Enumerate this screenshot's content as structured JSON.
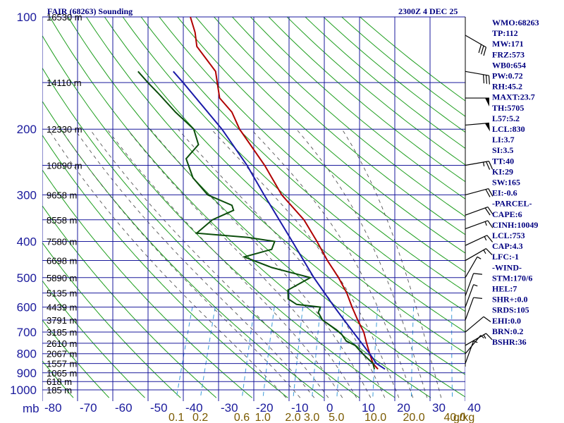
{
  "header": {
    "title": "FAIR (68263) Sounding",
    "time": "2300Z  4 DEC 25"
  },
  "indices": [
    "WMO:68263",
    "TP:112",
    "MW:171",
    "FRZ:573",
    "WB0:654",
    "PW:0.72",
    "RH:45.2",
    "MAXT:23.7",
    "TH:5705",
    "L57:5.2",
    "LCL:830",
    "LI:3.7",
    "SI:3.5",
    "TT:40",
    "KI:29",
    "SW:165",
    "EI:-0.6",
    "-PARCEL-",
    "CAPE:6",
    "CINH:10049",
    "LCL:753",
    "CAP:4.3",
    "LFC:-1",
    "-WIND-",
    "STM:170/6",
    "HEL:7",
    "SHR+:0.0",
    "SRDS:105",
    "EHI:0.0",
    "BRN:0.2",
    "BSHR:36"
  ],
  "colors": {
    "grid": "#1a1a9c",
    "dry_adiabat": "#1e9e1e",
    "moist_adiabat": "#555555",
    "mixing_ratio": "#3a9ad9",
    "temperature": "#b00000",
    "dewpoint": "#0b4d0b",
    "parcel": "#1a1aa8",
    "wind": "#000000"
  },
  "chart_data": {
    "type": "skew-t",
    "title": "FAIR (68263) Sounding",
    "xlabel": "",
    "ylabel": "",
    "pressure_axis_unit": "mb",
    "pressure_ticks": [
      100,
      200,
      300,
      400,
      500,
      600,
      700,
      800,
      900,
      1000
    ],
    "pressure_minor": [
      150,
      250,
      350,
      450,
      550,
      650,
      750,
      850,
      950
    ],
    "temperature_ticks": [
      -80,
      -70,
      -60,
      -50,
      -40,
      -30,
      -20,
      -10,
      0,
      10,
      20,
      30,
      40
    ],
    "temperature_labels": [
      "-80",
      "-70",
      "-60",
      "-50",
      "-40",
      "-30",
      "-20",
      "-10",
      "0",
      "10",
      "20",
      "30",
      "40"
    ],
    "mixing_ratio_unit": "g/kg",
    "mixing_ratio_labels": [
      {
        "value": 0.1,
        "label": "0.1"
      },
      {
        "value": 0.2,
        "label": "0.2"
      },
      {
        "value": 0.6,
        "label": "0.6"
      },
      {
        "value": 1.0,
        "label": "1.0"
      },
      {
        "value": 2.0,
        "label": "2.0"
      },
      {
        "value": 3.0,
        "label": "3.0"
      },
      {
        "value": 5.0,
        "label": "5.0"
      },
      {
        "value": 10.0,
        "label": "10.0"
      },
      {
        "value": 20.0,
        "label": "20.0"
      },
      {
        "value": 40.0,
        "label": "40.0"
      }
    ],
    "height_labels": [
      {
        "p": 100,
        "label": "16530 m"
      },
      {
        "p": 150,
        "label": "14110 m"
      },
      {
        "p": 200,
        "label": "12330 m"
      },
      {
        "p": 250,
        "label": "10890 m"
      },
      {
        "p": 300,
        "label": "9658 m"
      },
      {
        "p": 350,
        "label": "8558 m"
      },
      {
        "p": 400,
        "label": "7580 m"
      },
      {
        "p": 450,
        "label": "6698 m"
      },
      {
        "p": 500,
        "label": "5890 m"
      },
      {
        "p": 550,
        "label": "5135 m"
      },
      {
        "p": 600,
        "label": "4439 m"
      },
      {
        "p": 650,
        "label": "3791 m"
      },
      {
        "p": 700,
        "label": "3185 m"
      },
      {
        "p": 750,
        "label": "2610 m"
      },
      {
        "p": 800,
        "label": "2067 m"
      },
      {
        "p": 850,
        "label": "1557 m"
      },
      {
        "p": 900,
        "label": "1065 m"
      },
      {
        "p": 950,
        "label": "618 m"
      },
      {
        "p": 1000,
        "label": "185 m"
      }
    ],
    "series": [
      {
        "kind": "temperature",
        "points": [
          [
            880,
            13
          ],
          [
            850,
            11
          ],
          [
            800,
            9
          ],
          [
            750,
            7
          ],
          [
            700,
            5
          ],
          [
            650,
            2
          ],
          [
            600,
            -1
          ],
          [
            550,
            -4
          ],
          [
            500,
            -8
          ],
          [
            450,
            -13
          ],
          [
            400,
            -18
          ],
          [
            350,
            -24
          ],
          [
            300,
            -33
          ],
          [
            250,
            -41
          ],
          [
            200,
            -52
          ],
          [
            180,
            -56
          ],
          [
            165,
            -61
          ],
          [
            140,
            -65
          ],
          [
            120,
            -73
          ],
          [
            110,
            -75
          ],
          [
            100,
            -78
          ]
        ]
      },
      {
        "kind": "dewpoint",
        "points": [
          [
            880,
            12
          ],
          [
            850,
            11
          ],
          [
            800,
            7
          ],
          [
            760,
            4
          ],
          [
            740,
            1
          ],
          [
            710,
            -1
          ],
          [
            690,
            -3
          ],
          [
            650,
            -8
          ],
          [
            620,
            -10
          ],
          [
            600,
            -10
          ],
          [
            590,
            -17
          ],
          [
            570,
            -20
          ],
          [
            540,
            -21
          ],
          [
            500,
            -16
          ],
          [
            470,
            -28
          ],
          [
            440,
            -37
          ],
          [
            420,
            -30
          ],
          [
            400,
            -30
          ],
          [
            390,
            -38
          ],
          [
            380,
            -53
          ],
          [
            350,
            -50
          ],
          [
            330,
            -45
          ],
          [
            320,
            -46
          ],
          [
            300,
            -54
          ],
          [
            270,
            -60
          ],
          [
            240,
            -64
          ],
          [
            220,
            -62
          ],
          [
            200,
            -65
          ],
          [
            180,
            -72
          ],
          [
            160,
            -79
          ],
          [
            150,
            -83
          ],
          [
            140,
            -87
          ]
        ]
      },
      {
        "kind": "parcel",
        "points": [
          [
            880,
            15
          ],
          [
            850,
            12
          ],
          [
            800,
            9
          ],
          [
            700,
            2
          ],
          [
            600,
            -6
          ],
          [
            500,
            -15
          ],
          [
            400,
            -25
          ],
          [
            300,
            -38
          ],
          [
            250,
            -46
          ],
          [
            200,
            -57
          ],
          [
            150,
            -73
          ],
          [
            140,
            -77
          ]
        ]
      }
    ],
    "wind_barbs": [
      {
        "p": 112,
        "dir": 300,
        "speed": 30
      },
      {
        "p": 140,
        "dir": 280,
        "speed": 30
      },
      {
        "p": 165,
        "dir": 270,
        "speed": 50
      },
      {
        "p": 195,
        "dir": 265,
        "speed": 50
      },
      {
        "p": 250,
        "dir": 260,
        "speed": 25
      },
      {
        "p": 300,
        "dir": 255,
        "speed": 20
      },
      {
        "p": 340,
        "dir": 250,
        "speed": 20
      },
      {
        "p": 370,
        "dir": 250,
        "speed": 15
      },
      {
        "p": 410,
        "dir": 245,
        "speed": 15
      },
      {
        "p": 450,
        "dir": 240,
        "speed": 15
      },
      {
        "p": 500,
        "dir": 210,
        "speed": 5
      },
      {
        "p": 560,
        "dir": 200,
        "speed": 10
      },
      {
        "p": 600,
        "dir": 200,
        "speed": 5
      },
      {
        "p": 650,
        "dir": 200,
        "speed": 10
      },
      {
        "p": 700,
        "dir": 230,
        "speed": 10
      },
      {
        "p": 760,
        "dir": 240,
        "speed": 15
      },
      {
        "p": 800,
        "dir": 220,
        "speed": 5
      },
      {
        "p": 850,
        "dir": 200,
        "speed": 5
      }
    ]
  }
}
